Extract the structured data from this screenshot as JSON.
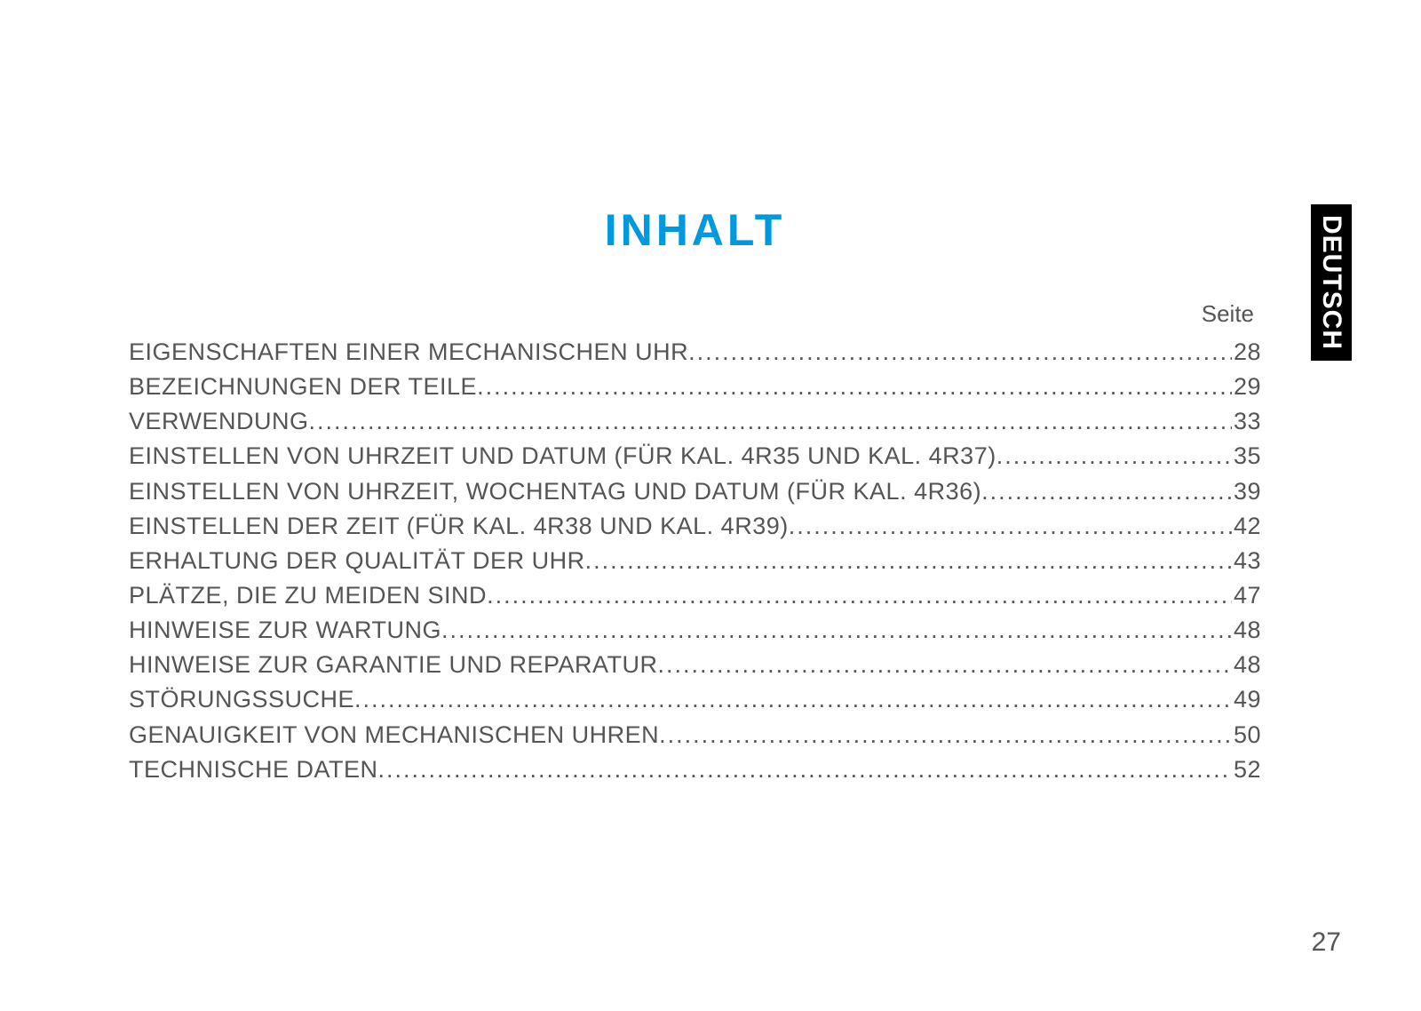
{
  "title": "INHALT",
  "seite_label": "Seite",
  "side_tab": "DEUTSCH",
  "page_number": "27",
  "colors": {
    "title": "#0099dd",
    "text": "#555555",
    "tab_bg": "#000000",
    "tab_text": "#ffffff",
    "background": "#ffffff"
  },
  "typography": {
    "title_fontsize": 50,
    "title_weight": 900,
    "title_letter_spacing": 4,
    "body_fontsize": 27,
    "seite_fontsize": 26,
    "tab_fontsize": 30,
    "pagenum_fontsize": 30,
    "line_height": 1.45
  },
  "toc": [
    {
      "label": "EIGENSCHAFTEN EINER MECHANISCHEN UHR ",
      "page": "28"
    },
    {
      "label": "BEZEICHNUNGEN DER TEILE ",
      "page": "29"
    },
    {
      "label": "VERWENDUNG",
      "page": "33"
    },
    {
      "label": "EINSTELLEN VON UHRZEIT UND DATUM (FÜR KAL. 4R35 UND KAL. 4R37) ",
      "page": "35"
    },
    {
      "label": "EINSTELLEN VON UHRZEIT, WOCHENTAG UND DATUM (FÜR KAL. 4R36)",
      "page": "39"
    },
    {
      "label": "EINSTELLEN DER ZEIT (FÜR KAL. 4R38 UND KAL. 4R39) ",
      "page": "42"
    },
    {
      "label": "ERHALTUNG DER QUALITÄT DER UHR ",
      "page": "43"
    },
    {
      "label": "PLÄTZE, DIE ZU MEIDEN SIND ",
      "page": "47"
    },
    {
      "label": "HINWEISE ZUR WARTUNG ",
      "page": "48"
    },
    {
      "label": "HINWEISE ZUR GARANTIE UND REPARATUR ",
      "page": "48"
    },
    {
      "label": "STÖRUNGSSUCHE",
      "page": "49"
    },
    {
      "label": "GENAUIGKEIT VON MECHANISCHEN UHREN ",
      "page": "50"
    },
    {
      "label": "TECHNISCHE DATEN ",
      "page": "52"
    }
  ]
}
